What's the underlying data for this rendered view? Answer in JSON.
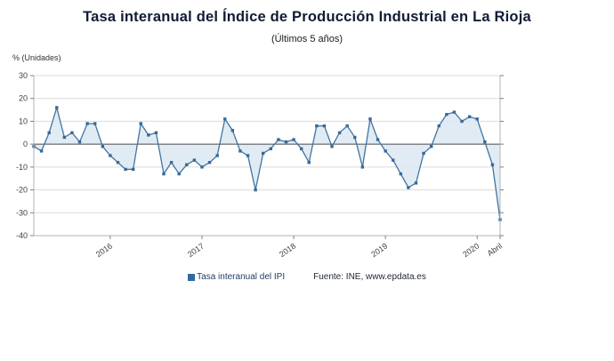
{
  "header": {
    "title": "Tasa interanual del Índice de Producción Industrial en La Rioja",
    "subtitle": "(Últimos 5 años)"
  },
  "axis": {
    "unit_label": "% (Unidades)"
  },
  "legend": {
    "series_label": "Tasa interanual del IPI",
    "source": "Fuente: INE, www.epdata.es"
  },
  "colors": {
    "line": "#44749e",
    "marker": "#35699c",
    "area_fill": "#dbe7f2",
    "grid": "#dcdcdc",
    "zero_line": "#4a4a4a",
    "axis": "#b3b3b3",
    "tick": "#7f7f7f",
    "tick_text": "#404040",
    "legend_swatch": "#35699c"
  },
  "chart_data": {
    "type": "line",
    "title": "Tasa interanual del Índice de Producción Industrial en La Rioja",
    "subtitle": "(Últimos 5 años)",
    "ylabel": "% (Unidades)",
    "ylim": [
      -40,
      30
    ],
    "y_ticks": [
      -40,
      -30,
      -20,
      -10,
      0,
      10,
      20,
      30
    ],
    "x_tick_labels": [
      "2016",
      "2017",
      "2018",
      "2019",
      "2020",
      "Abril"
    ],
    "x_tick_indices": [
      10,
      22,
      34,
      46,
      58,
      61
    ],
    "grid": true,
    "area_fill_to_zero": true,
    "legend_position": "bottom",
    "series": [
      {
        "name": "Tasa interanual del IPI",
        "values": [
          -1,
          -3,
          5,
          16,
          3,
          5,
          1,
          9,
          9,
          -1,
          -5,
          -8,
          -11,
          -11,
          9,
          4,
          5,
          -13,
          -8,
          -13,
          -9,
          -7,
          -10,
          -8,
          -5,
          11,
          6,
          -3,
          -5,
          -20,
          -4,
          -2,
          2,
          1,
          2,
          -2,
          -8,
          8,
          8,
          -1,
          5,
          8,
          3,
          -10,
          11,
          2,
          -3,
          -7,
          -13,
          -19,
          -17,
          -4,
          -1,
          8,
          13,
          14,
          10,
          12,
          11,
          1,
          -9,
          -33
        ]
      }
    ]
  }
}
